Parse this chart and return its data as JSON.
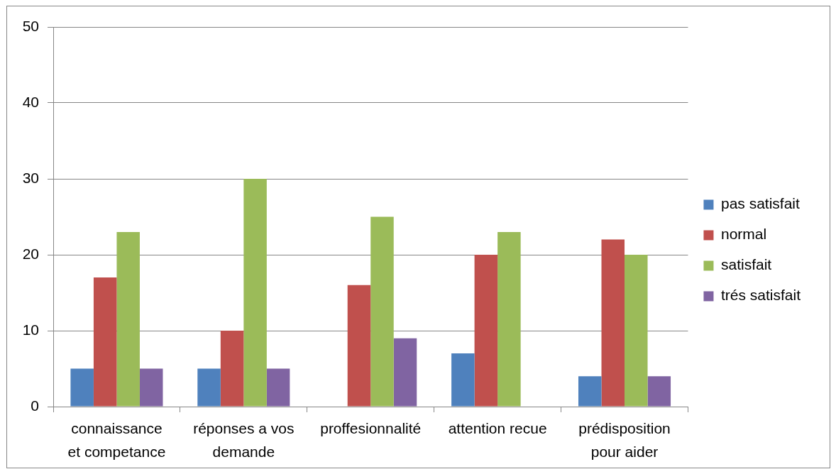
{
  "chart_data": {
    "type": "bar",
    "categories": [
      "connaissance et competance",
      "réponses a vos demande",
      "proffesionnalité",
      "attention recue",
      "prédisposition pour aider"
    ],
    "series": [
      {
        "name": "pas satisfait",
        "color": "#4f81bd",
        "values": [
          5,
          5,
          0,
          7,
          4
        ]
      },
      {
        "name": "normal",
        "color": "#c0504d",
        "values": [
          17,
          10,
          16,
          20,
          22
        ]
      },
      {
        "name": "satisfait",
        "color": "#9bbb59",
        "values": [
          23,
          30,
          25,
          23,
          20
        ]
      },
      {
        "name": "trés satisfait",
        "color": "#8064a2",
        "values": [
          5,
          5,
          9,
          0,
          4
        ]
      }
    ],
    "ylim": [
      0,
      50
    ],
    "yticks": [
      0,
      10,
      20,
      30,
      40,
      50
    ],
    "grid": "y",
    "legend": "right"
  }
}
